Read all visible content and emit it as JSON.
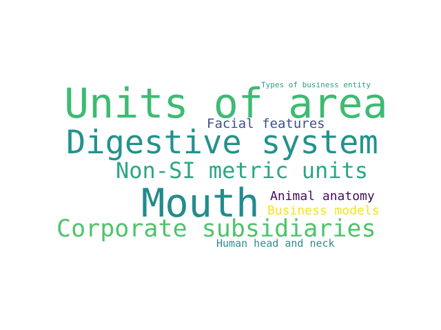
{
  "word_cloud": {
    "words": [
      {
        "text": "Units of area",
        "color": "#3dbb72"
      },
      {
        "text": "Digestive system",
        "color": "#23928c"
      },
      {
        "text": "Non-SI metric units",
        "color": "#2aa785"
      },
      {
        "text": "Mouth",
        "color": "#238b8d"
      },
      {
        "text": "Corporate subsidiaries",
        "color": "#4ec36b"
      },
      {
        "text": "Facial features",
        "color": "#3e4f8a"
      },
      {
        "text": "Types of business entity",
        "color": "#2a9a87"
      },
      {
        "text": "Animal anatomy",
        "color": "#460b5e"
      },
      {
        "text": "Business models",
        "color": "#f1e41d"
      },
      {
        "text": "Human head and neck",
        "color": "#2e8a8e"
      }
    ]
  }
}
